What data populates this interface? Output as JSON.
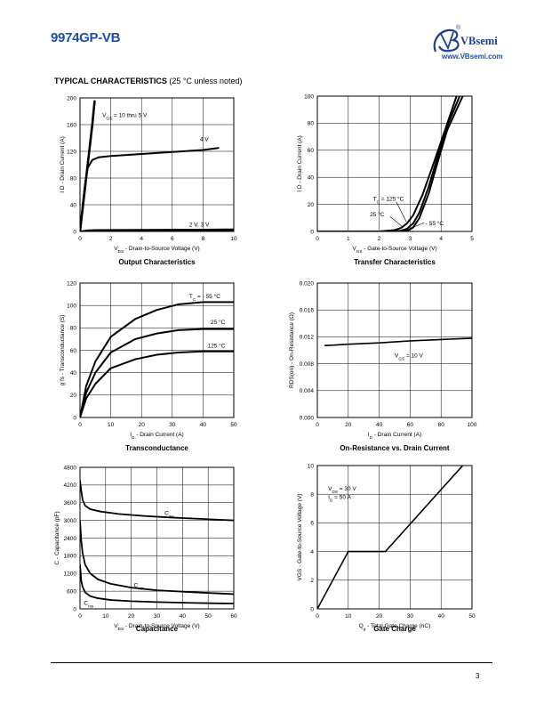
{
  "header": {
    "part_number": "9974GP-VB",
    "logo_name": "VBsemi",
    "logo_mark": "®",
    "website": "www.VBsemi.com"
  },
  "section": {
    "title": "TYPICAL CHARACTERISTICS",
    "subtitle": "(25 °C unless noted)"
  },
  "footer": {
    "page_number": "3"
  },
  "colors": {
    "title_blue": "#1f4fa3",
    "logo_blue": "#1f3f8a",
    "ink": "#000000"
  },
  "chart_data": [
    {
      "id": "output",
      "type": "line",
      "title": "Output Characteristics",
      "xlabel": "V<sub>DS</sub> - Drain-to-Source Voltage (V)",
      "ylabel": "I D - Drain Current (A)",
      "xlim": [
        0,
        10
      ],
      "ylim": [
        0,
        200
      ],
      "xticks": [
        0,
        2,
        4,
        6,
        8,
        10
      ],
      "yticks": [
        0,
        40,
        80,
        120,
        160,
        200
      ],
      "xtick_labels": [
        "0",
        "2",
        "4",
        "6",
        "8",
        "10"
      ],
      "ytick_labels": [
        "0",
        "40",
        "80",
        "120",
        "160",
        "200"
      ],
      "grid": true,
      "series": [
        {
          "x": [
            0,
            0.2,
            0.4,
            0.6,
            0.8,
            0.95
          ],
          "y": [
            0,
            40,
            80,
            120,
            160,
            195
          ],
          "width": 2.6
        },
        {
          "x": [
            0,
            0.2,
            0.35,
            0.5,
            0.8,
            1.2,
            2,
            4,
            6,
            8,
            9
          ],
          "y": [
            0,
            45,
            75,
            95,
            107,
            111,
            113,
            116,
            119,
            122,
            125
          ],
          "width": 2
        },
        {
          "x": [
            0,
            0.5,
            1,
            4,
            8,
            10
          ],
          "y": [
            0,
            1.5,
            2,
            2.3,
            2.7,
            3
          ],
          "width": 2
        },
        {
          "x": [
            0,
            0.5,
            1,
            4,
            8,
            10
          ],
          "y": [
            0,
            0.5,
            0.8,
            1,
            1.2,
            1.3
          ],
          "width": 1.5
        }
      ],
      "annotations": [
        {
          "html": "V<sub>GS</sub> = 10 thru 5 V",
          "x": 1.45,
          "y": 174
        },
        {
          "html": "4 V",
          "x": 7.8,
          "y": 138
        },
        {
          "html": "2 V, 3 V",
          "x": 7.1,
          "y": 10
        }
      ]
    },
    {
      "id": "transfer",
      "type": "line",
      "title": "Transfer Characteristics",
      "xlabel": "V<sub>GS</sub> - Gate-to-Source Voltage (V)",
      "ylabel": "I D - Drain Current (A)",
      "xlim": [
        0,
        5
      ],
      "ylim": [
        0,
        100
      ],
      "xticks": [
        0,
        1,
        2,
        3,
        4,
        5
      ],
      "yticks": [
        0,
        20,
        40,
        60,
        80,
        100
      ],
      "xtick_labels": [
        "0",
        "1",
        "2",
        "3",
        "4",
        "5"
      ],
      "ytick_labels": [
        "0",
        "20",
        "40",
        "60",
        "80",
        "100"
      ],
      "grid": true,
      "series": [
        {
          "name": "125 °C",
          "x": [
            0,
            2,
            2.5,
            2.7,
            2.9,
            3.1,
            3.4,
            3.8,
            4.1,
            4.5
          ],
          "y": [
            0,
            0,
            1,
            2.5,
            6,
            12,
            27,
            53,
            73,
            100
          ],
          "width": 2
        },
        {
          "name": "25 °C",
          "x": [
            0,
            2.2,
            2.7,
            2.9,
            3.1,
            3.3,
            3.6,
            3.9,
            4.2,
            4.6
          ],
          "y": [
            0,
            0,
            0.5,
            2,
            6,
            14,
            33,
            56,
            78,
            100
          ],
          "width": 2
        },
        {
          "name": "- 55 °C",
          "x": [
            0,
            2.5,
            2.9,
            3.1,
            3.3,
            3.6,
            3.9,
            4.2,
            4.7
          ],
          "y": [
            0,
            0,
            0.5,
            3,
            10,
            28,
            52,
            75,
            100
          ],
          "width": 2
        }
      ],
      "annotations": [
        {
          "html": "T<sub>C</sub> = 125 °C",
          "x": 1.8,
          "y": 24
        },
        {
          "html": "25 °C",
          "x": 1.7,
          "y": 12.5
        },
        {
          "html": "- 55 °C",
          "x": 3.5,
          "y": 6
        }
      ],
      "leaders": [
        {
          "x": [
            2.88,
            2.55
          ],
          "y": [
            7,
            22
          ]
        },
        {
          "x": [
            2.75,
            2.35
          ],
          "y": [
            3.5,
            11
          ]
        },
        {
          "x": [
            3.1,
            3.45
          ],
          "y": [
            3,
            6.5
          ]
        }
      ]
    },
    {
      "id": "transconductance",
      "type": "line",
      "title": "Transconductance",
      "xlabel": "I<sub>D</sub> - Drain Current (A)",
      "ylabel": "g fs - Transconductance (S)",
      "xlim": [
        0,
        50
      ],
      "ylim": [
        0,
        120
      ],
      "xticks": [
        0,
        10,
        20,
        30,
        40,
        50
      ],
      "yticks": [
        0,
        20,
        40,
        60,
        80,
        100,
        120
      ],
      "xtick_labels": [
        "0",
        "10",
        "20",
        "30",
        "40",
        "50"
      ],
      "ytick_labels": [
        "0",
        "20",
        "40",
        "60",
        "80",
        "100",
        "120"
      ],
      "grid": true,
      "series": [
        {
          "name": "- 55 °C",
          "x": [
            0,
            2,
            5,
            10,
            18,
            25,
            32,
            40,
            50
          ],
          "y": [
            0,
            28,
            50,
            72,
            88,
            96,
            101,
            103,
            103
          ],
          "width": 2
        },
        {
          "name": "25 °C",
          "x": [
            0,
            2,
            5,
            10,
            18,
            25,
            32,
            40,
            50
          ],
          "y": [
            0,
            22,
            40,
            58,
            70,
            75,
            78,
            79,
            79
          ],
          "width": 2
        },
        {
          "name": "125 °C",
          "x": [
            0,
            2,
            5,
            10,
            18,
            25,
            32,
            40,
            50
          ],
          "y": [
            0,
            17,
            30,
            44,
            52,
            56,
            58,
            59,
            59
          ],
          "width": 2
        }
      ],
      "annotations": [
        {
          "html": "T<sub>C</sub> = - 55 °C",
          "x": 35.5,
          "y": 108
        },
        {
          "html": "25 °C",
          "x": 42.5,
          "y": 85
        },
        {
          "html": "125 °C",
          "x": 41.5,
          "y": 64
        }
      ]
    },
    {
      "id": "on_resistance",
      "type": "line",
      "title": "On-Resistance vs. Drain Current",
      "xlabel": "I<sub>D</sub> - Drain Current (A)",
      "ylabel": "RDS(on) - On-Resistance (Ω)",
      "xlim": [
        0,
        100
      ],
      "ylim": [
        0,
        0.02
      ],
      "xticks": [
        0,
        20,
        40,
        60,
        80,
        100
      ],
      "yticks": [
        0,
        0.004,
        0.008,
        0.012,
        0.016,
        0.02
      ],
      "xtick_labels": [
        "0",
        "20",
        "40",
        "60",
        "80",
        "100"
      ],
      "ytick_labels": [
        "0.000",
        "0.004",
        "0.008",
        "0.012",
        "0.016",
        "0.020"
      ],
      "grid": true,
      "series": [
        {
          "x": [
            5,
            20,
            40,
            60,
            80,
            100
          ],
          "y": [
            0.0107,
            0.0109,
            0.0111,
            0.0114,
            0.0116,
            0.0118
          ],
          "width": 1.6
        }
      ],
      "annotations": [
        {
          "html": "V<sub>GS</sub> = 10 V",
          "x": 50,
          "y": 0.0092
        }
      ]
    },
    {
      "id": "capacitance",
      "type": "line",
      "title": "Capacitance",
      "xlabel": "V<sub>DS</sub> - Drain-to-Source Voltage (V)",
      "ylabel": "C - Capacitance (pF)",
      "xlim": [
        0,
        60
      ],
      "ylim": [
        0,
        4800
      ],
      "xticks": [
        0,
        10,
        20,
        30,
        40,
        50,
        60
      ],
      "yticks": [
        0,
        600,
        1200,
        1800,
        2400,
        3000,
        3600,
        4200,
        4800
      ],
      "xtick_labels": [
        "0",
        "10",
        "20",
        "30",
        "40",
        "50",
        "60"
      ],
      "ytick_labels": [
        "0",
        "600",
        "1200",
        "1800",
        "2400",
        "3000",
        "3600",
        "4200",
        "4800"
      ],
      "grid": true,
      "series": [
        {
          "name": "Ciss",
          "x": [
            0,
            0.5,
            1,
            2,
            4,
            8,
            15,
            25,
            35,
            45,
            60
          ],
          "y": [
            4350,
            4000,
            3700,
            3500,
            3380,
            3300,
            3220,
            3150,
            3100,
            3060,
            3000
          ],
          "width": 1.8
        },
        {
          "name": "Coss",
          "x": [
            0,
            0.5,
            1,
            2,
            4,
            7,
            12,
            20,
            30,
            45,
            60
          ],
          "y": [
            3000,
            2300,
            1900,
            1500,
            1200,
            1000,
            850,
            720,
            630,
            560,
            500
          ],
          "width": 1.8
        },
        {
          "name": "Crss",
          "x": [
            0,
            0.5,
            1,
            2,
            4,
            7,
            12,
            20,
            30,
            45,
            60
          ],
          "y": [
            1500,
            950,
            750,
            560,
            430,
            360,
            300,
            260,
            230,
            200,
            180
          ],
          "width": 1.8
        }
      ],
      "annotations": [
        {
          "html": "C<sub>iss</sub>",
          "x": 33,
          "y": 3250
        },
        {
          "html": "C<sub>oss</sub>",
          "x": 21,
          "y": 800
        },
        {
          "html": "C<sub>rss</sub>",
          "x": 1.5,
          "y": 200
        }
      ]
    },
    {
      "id": "gate_charge",
      "type": "line",
      "title": "Gate Charge",
      "xlabel": "Q<sub>g</sub> - Total Gate Charge (nC)",
      "ylabel": "VGS - Gate-to-Source Voltage (V)",
      "xlim": [
        0,
        50
      ],
      "ylim": [
        0,
        10
      ],
      "xticks": [
        0,
        10,
        20,
        30,
        40,
        50
      ],
      "yticks": [
        0,
        2,
        4,
        6,
        8,
        10
      ],
      "xtick_labels": [
        "0",
        "10",
        "20",
        "30",
        "40",
        "50"
      ],
      "ytick_labels": [
        "0",
        "2",
        "4",
        "6",
        "8",
        "10"
      ],
      "grid": true,
      "series": [
        {
          "x": [
            0,
            10,
            22,
            47
          ],
          "y": [
            0,
            4,
            4,
            10
          ],
          "width": 1.6
        }
      ],
      "annotations": [
        {
          "html": "V<sub>DS</sub> = 30 V",
          "x": 3.5,
          "y": 8.4
        },
        {
          "html": "I<sub>D</sub> = 50 A",
          "x": 3.5,
          "y": 7.8
        }
      ]
    }
  ]
}
